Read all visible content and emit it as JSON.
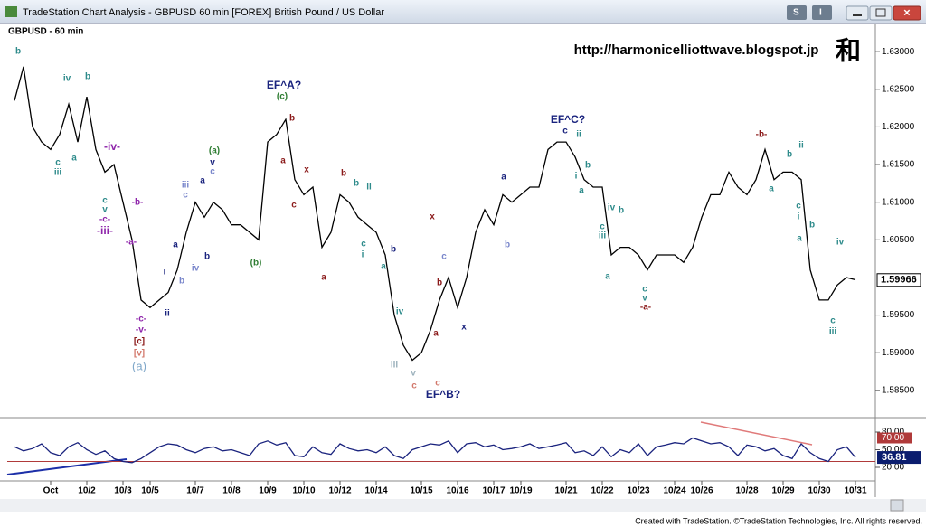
{
  "window": {
    "title": "TradeStation Chart Analysis - GBPUSD 60 min [FOREX] British Pound / US Dollar",
    "buttons": [
      "S",
      "I"
    ]
  },
  "watermark": {
    "url": "http://harmonicelliottwave.blogspot.jp",
    "symbol": "和"
  },
  "footer": "Created with TradeStation. ©TradeStation Technologies, Inc. All rights reserved.",
  "chart_data": [
    {
      "type": "line",
      "title": "GBPUSD - 60 min",
      "color": "#000000",
      "categories": [
        null,
        null,
        null,
        null,
        "Oct",
        null,
        null,
        null,
        "10/2",
        null,
        null,
        null,
        "10/3",
        null,
        null,
        "10/5",
        null,
        null,
        null,
        null,
        "10/7",
        null,
        null,
        null,
        "10/8",
        null,
        null,
        null,
        "10/9",
        null,
        null,
        null,
        "10/10",
        null,
        null,
        null,
        "10/12",
        null,
        null,
        null,
        "10/14",
        null,
        null,
        null,
        null,
        "10/15",
        null,
        null,
        null,
        "10/16",
        null,
        null,
        null,
        "10/17",
        null,
        null,
        "10/19",
        null,
        null,
        null,
        null,
        "10/21",
        null,
        null,
        null,
        "10/22",
        null,
        null,
        null,
        "10/23",
        null,
        null,
        null,
        "10/24",
        null,
        null,
        "10/26",
        null,
        null,
        null,
        null,
        "10/28",
        null,
        null,
        null,
        "10/29",
        null,
        null,
        null,
        "10/30",
        null,
        null,
        null,
        "10/31"
      ],
      "values": [
        1.6235,
        1.628,
        1.62,
        1.618,
        1.617,
        1.619,
        1.623,
        1.618,
        1.624,
        1.617,
        1.614,
        1.615,
        1.61,
        1.605,
        1.597,
        1.596,
        1.597,
        1.598,
        1.601,
        1.606,
        1.61,
        1.608,
        1.61,
        1.609,
        1.607,
        1.607,
        1.606,
        1.605,
        1.618,
        1.619,
        1.621,
        1.613,
        1.611,
        1.612,
        1.604,
        1.606,
        1.611,
        1.61,
        1.608,
        1.607,
        1.606,
        1.603,
        1.595,
        1.591,
        1.589,
        1.59,
        1.593,
        1.597,
        1.6,
        1.596,
        1.6,
        1.606,
        1.609,
        1.607,
        1.611,
        1.61,
        1.611,
        1.612,
        1.612,
        1.617,
        1.618,
        1.618,
        1.616,
        1.613,
        1.612,
        1.612,
        1.603,
        1.604,
        1.604,
        1.603,
        1.601,
        1.603,
        1.603,
        1.603,
        1.602,
        1.604,
        1.608,
        1.611,
        1.611,
        1.614,
        1.612,
        1.611,
        1.613,
        1.617,
        1.613,
        1.614,
        1.614,
        1.613,
        1.601,
        1.597,
        1.597,
        1.599,
        1.6,
        1.5997
      ],
      "last_price": 1.59966,
      "ylim": [
        1.5815,
        1.6335
      ],
      "yticks": [
        {
          "value": 1.63,
          "label": "1.63000"
        },
        {
          "value": 1.625,
          "label": "1.62500"
        },
        {
          "value": 1.62,
          "label": "1.62000"
        },
        {
          "value": 1.615,
          "label": "1.61500"
        },
        {
          "value": 1.61,
          "label": "1.61000"
        },
        {
          "value": 1.605,
          "label": "1.60500"
        },
        {
          "value": 1.595,
          "label": "1.59500"
        },
        {
          "value": 1.59,
          "label": "1.59000"
        },
        {
          "value": 1.585,
          "label": "1.58500"
        }
      ],
      "annotations": [
        {
          "text": "b",
          "color": "#2e8b8b"
        },
        {
          "text": "iv",
          "color": "#2e8b8b"
        },
        {
          "text": "b",
          "color": "#2e8b8b"
        },
        {
          "text": "c",
          "color": "#2e8b8b"
        },
        {
          "text": "iii",
          "color": "#2e8b8b"
        },
        {
          "text": "a",
          "color": "#2e8b8b"
        },
        {
          "text": "-iv-",
          "color": "#8e24aa"
        },
        {
          "text": "c",
          "color": "#2e8b8b"
        },
        {
          "text": "v",
          "color": "#2e8b8b"
        },
        {
          "text": "-c-",
          "color": "#8e24aa"
        },
        {
          "text": "-iii-",
          "color": "#8e24aa"
        },
        {
          "text": "-b-",
          "color": "#8e24aa"
        },
        {
          "text": "-a-",
          "color": "#8e24aa"
        },
        {
          "text": "-c-",
          "color": "#8e24aa"
        },
        {
          "text": "-v-",
          "color": "#8e24aa"
        },
        {
          "text": "[c]",
          "color": "#8b1a1a"
        },
        {
          "text": "[v]",
          "color": "#d2786b"
        },
        {
          "text": "(a)",
          "color": "#7fa7c9"
        },
        {
          "text": "i",
          "color": "#1a237e"
        },
        {
          "text": "ii",
          "color": "#1a237e"
        },
        {
          "text": "a",
          "color": "#1a237e"
        },
        {
          "text": "b",
          "color": "#7986cb"
        },
        {
          "text": "iv",
          "color": "#7986cb"
        },
        {
          "text": "iii",
          "color": "#7986cb"
        },
        {
          "text": "c",
          "color": "#7986cb"
        },
        {
          "text": "a",
          "color": "#1a237e"
        },
        {
          "text": "b",
          "color": "#1a237e"
        },
        {
          "text": "(a)",
          "color": "#2e7d32"
        },
        {
          "text": "v",
          "color": "#1a237e"
        },
        {
          "text": "c",
          "color": "#7986cb"
        },
        {
          "text": "(b)",
          "color": "#2e7d32"
        },
        {
          "text": "EF^A?",
          "color": "#1a237e"
        },
        {
          "text": "(c)",
          "color": "#2e7d32"
        },
        {
          "text": "b",
          "color": "#8b1a1a"
        },
        {
          "text": "a",
          "color": "#8b1a1a"
        },
        {
          "text": "x",
          "color": "#8b1a1a"
        },
        {
          "text": "c",
          "color": "#8b1a1a"
        },
        {
          "text": "a",
          "color": "#8b1a1a"
        },
        {
          "text": "b",
          "color": "#8b1a1a"
        },
        {
          "text": "b",
          "color": "#2e8b8b"
        },
        {
          "text": "ii",
          "color": "#2e8b8b"
        },
        {
          "text": "c",
          "color": "#2e8b8b"
        },
        {
          "text": "i",
          "color": "#2e8b8b"
        },
        {
          "text": "a",
          "color": "#2e8b8b"
        },
        {
          "text": "b",
          "color": "#1a237e"
        },
        {
          "text": "iv",
          "color": "#2e8b8b"
        },
        {
          "text": "iii",
          "color": "#9ab0bb"
        },
        {
          "text": "v",
          "color": "#9ab0bb"
        },
        {
          "text": "c",
          "color": "#d2786b"
        },
        {
          "text": "EF^B?",
          "color": "#1a237e"
        },
        {
          "text": "x",
          "color": "#8b1a1a"
        },
        {
          "text": "b",
          "color": "#8b1a1a"
        },
        {
          "text": "a",
          "color": "#8b1a1a"
        },
        {
          "text": "c",
          "color": "#7986cb"
        },
        {
          "text": "c",
          "color": "#d2786b"
        },
        {
          "text": "x",
          "color": "#1a237e"
        },
        {
          "text": "a",
          "color": "#1a237e"
        },
        {
          "text": "b",
          "color": "#7986cb"
        },
        {
          "text": "EF^C?",
          "color": "#1a237e"
        },
        {
          "text": "c",
          "color": "#1a237e"
        },
        {
          "text": "ii",
          "color": "#2e8b8b"
        },
        {
          "text": "b",
          "color": "#2e8b8b"
        },
        {
          "text": "i",
          "color": "#2e8b8b"
        },
        {
          "text": "a",
          "color": "#2e8b8b"
        },
        {
          "text": "iv",
          "color": "#2e8b8b"
        },
        {
          "text": "b",
          "color": "#2e8b8b"
        },
        {
          "text": "c",
          "color": "#2e8b8b"
        },
        {
          "text": "iii",
          "color": "#2e8b8b"
        },
        {
          "text": "a",
          "color": "#2e8b8b"
        },
        {
          "text": "c",
          "color": "#2e8b8b"
        },
        {
          "text": "v",
          "color": "#2e8b8b"
        },
        {
          "text": "-a-",
          "color": "#8b1a1a"
        },
        {
          "text": "-b-",
          "color": "#8b1a1a"
        },
        {
          "text": "a",
          "color": "#2e8b8b"
        },
        {
          "text": "b",
          "color": "#2e8b8b"
        },
        {
          "text": "ii",
          "color": "#2e8b8b"
        },
        {
          "text": "c",
          "color": "#2e8b8b"
        },
        {
          "text": "i",
          "color": "#2e8b8b"
        },
        {
          "text": "b",
          "color": "#2e8b8b"
        },
        {
          "text": "a",
          "color": "#2e8b8b"
        },
        {
          "text": "iv",
          "color": "#2e8b8b"
        },
        {
          "text": "c",
          "color": "#2e8b8b"
        },
        {
          "text": "iii",
          "color": "#2e8b8b"
        }
      ]
    },
    {
      "type": "line",
      "color": "#1a237e",
      "series": [
        {
          "values": [
            55,
            48,
            52,
            60,
            45,
            40,
            55,
            62,
            50,
            42,
            48,
            35,
            30,
            28,
            35,
            45,
            55,
            60,
            58,
            50,
            45,
            52,
            55,
            48,
            50,
            45,
            40,
            60,
            65,
            58,
            62,
            40,
            38,
            55,
            45,
            42,
            60,
            52,
            48,
            50,
            45,
            55,
            40,
            35,
            50,
            55,
            60,
            58,
            65,
            45,
            60,
            62,
            55,
            58,
            50,
            52,
            55,
            60,
            52,
            55,
            58,
            62,
            45,
            48,
            40,
            55,
            38,
            50,
            45,
            60,
            40,
            55,
            58,
            62,
            60,
            70,
            65,
            60,
            62,
            55,
            40,
            58,
            55,
            48,
            52,
            40,
            35,
            60,
            45,
            35,
            30,
            50,
            55,
            36.81
          ],
          "value_labels": [
            null,
            null,
            null,
            null,
            null,
            null,
            null,
            null,
            null,
            null,
            null,
            null,
            null,
            null,
            null,
            null,
            null,
            null,
            null,
            null,
            null,
            null,
            null,
            null,
            null,
            null,
            null,
            null,
            null,
            null,
            null,
            null,
            null,
            null,
            null,
            null,
            null,
            null,
            null,
            null,
            null,
            null,
            null,
            null,
            null,
            null,
            null,
            null,
            null,
            null,
            null,
            null,
            null,
            null,
            null,
            null,
            null,
            null,
            null,
            null,
            null,
            null,
            null,
            null,
            null,
            null,
            null,
            null,
            null,
            null,
            null,
            null,
            null,
            null,
            null,
            null,
            null,
            null,
            null,
            null,
            null,
            null,
            null,
            null,
            null,
            null,
            null,
            null,
            null,
            null,
            null,
            null,
            null,
            "36.81"
          ]
        }
      ],
      "ylim": [
        0,
        100
      ],
      "yticks": [
        {
          "value": 80,
          "label": "80.00"
        },
        {
          "value": 70,
          "label": "70.00"
        },
        {
          "value": 50,
          "label": "50.00"
        },
        {
          "value": 20,
          "label": "20.00"
        }
      ],
      "reference_lines": [
        70,
        30
      ],
      "reference_color": "#b03a3a"
    }
  ]
}
